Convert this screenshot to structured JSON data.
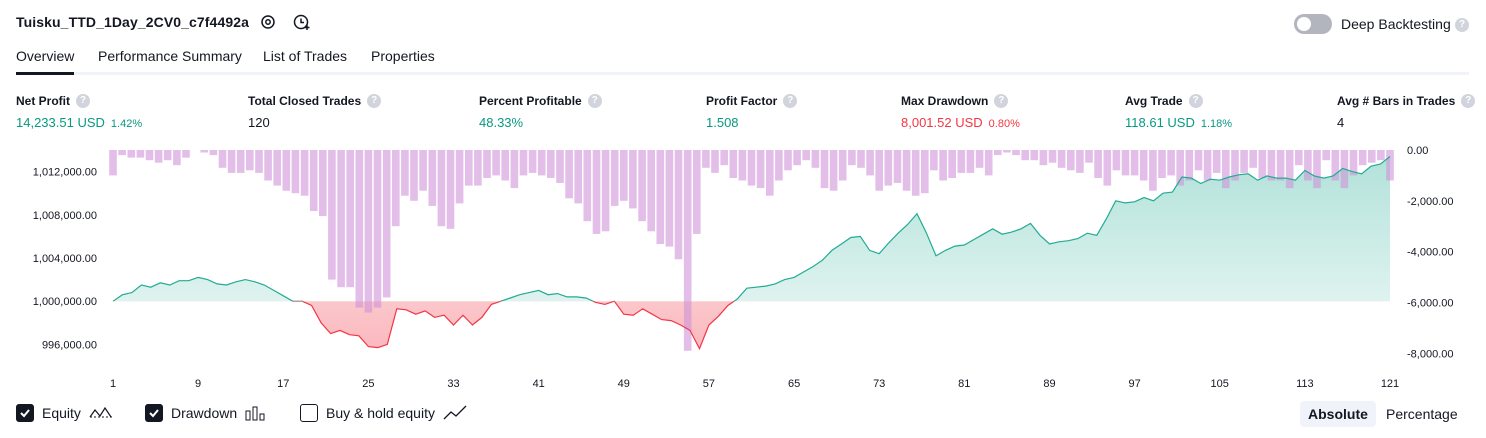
{
  "header": {
    "strategy_name": "Tuisku_TTD_1Day_2CV0_c7f4492a",
    "deep_backtesting_label": "Deep Backtesting",
    "deep_backtesting_enabled": false,
    "help_glyph": "?"
  },
  "tabs": [
    {
      "label": "Overview",
      "active": true
    },
    {
      "label": "Performance Summary",
      "active": false
    },
    {
      "label": "List of Trades",
      "active": false
    },
    {
      "label": "Properties",
      "active": false
    }
  ],
  "metrics": [
    {
      "label": "Net Profit",
      "value": "14,233.51 USD",
      "pct": "1.42%",
      "color": "green"
    },
    {
      "label": "Total Closed Trades",
      "value": "120",
      "pct": "",
      "color": "dark"
    },
    {
      "label": "Percent Profitable",
      "value": "48.33%",
      "pct": "",
      "color": "green"
    },
    {
      "label": "Profit Factor",
      "value": "1.508",
      "pct": "",
      "color": "green"
    },
    {
      "label": "Max Drawdown",
      "value": "8,001.52 USD",
      "pct": "0.80%",
      "color": "red"
    },
    {
      "label": "Avg Trade",
      "value": "118.61 USD",
      "pct": "1.18%",
      "color": "green"
    },
    {
      "label": "Avg # Bars in Trades",
      "value": "4",
      "pct": "",
      "color": "dark"
    }
  ],
  "chart_data": {
    "type": "area",
    "x_ticks": [
      "1",
      "9",
      "17",
      "25",
      "33",
      "41",
      "49",
      "57",
      "65",
      "73",
      "81",
      "89",
      "97",
      "105",
      "113",
      "121"
    ],
    "left_axis_ticks": [
      "1,012,000.00",
      "1,008,000.00",
      "1,004,000.00",
      "1,000,000.00",
      "996,000.00"
    ],
    "right_axis_ticks": [
      "0.00",
      "-2,000.00",
      "-4,000.00",
      "-6,000.00",
      "-8,000.00"
    ],
    "left_ylim": [
      994000,
      1014000
    ],
    "right_ylim": [
      -8500,
      0
    ],
    "baseline": 1000000,
    "colors": {
      "equity_line": "#22ab94",
      "equity_fill": "#22ab94",
      "drawdown_line": "#f23645",
      "drawdown_fill": "#f23645",
      "drawdown_bar": "#ce93d8"
    },
    "series": [
      {
        "name": "Equity",
        "values": [
          1000000,
          1000600,
          1000800,
          1001500,
          1001300,
          1001700,
          1001500,
          1001900,
          1001900,
          1002200,
          1002000,
          1001600,
          1001500,
          1001800,
          1002000,
          1001800,
          1001500,
          1001000,
          1000500,
          1000000,
          1000000,
          999600,
          998000,
          997000,
          997300,
          996900,
          996800,
          995800,
          995700,
          996000,
          999300,
          999200,
          998800,
          999100,
          998500,
          998700,
          997800,
          998700,
          997800,
          998500,
          999700,
          1000000,
          1000300,
          1000600,
          1000800,
          1001000,
          1000600,
          1000700,
          1000400,
          1000400,
          1000300,
          999900,
          999700,
          1000000,
          998800,
          998700,
          999300,
          998800,
          998300,
          998200,
          997800,
          997300,
          995600,
          997800,
          998600,
          999600,
          1000200,
          1001200,
          1001300,
          1001400,
          1001600,
          1002000,
          1002200,
          1002700,
          1003200,
          1003800,
          1004700,
          1005300,
          1005900,
          1006000,
          1004700,
          1004400,
          1005400,
          1006300,
          1007100,
          1008100,
          1006300,
          1004200,
          1004700,
          1005100,
          1005200,
          1005700,
          1006200,
          1006700,
          1006200,
          1006400,
          1006700,
          1007200,
          1006100,
          1005300,
          1005500,
          1005600,
          1005800,
          1006300,
          1006100,
          1007600,
          1009300,
          1009100,
          1009200,
          1009600,
          1009300,
          1010000,
          1010100,
          1011500,
          1011400,
          1010900,
          1011300,
          1011200,
          1011500,
          1011700,
          1011800,
          1011200,
          1011600,
          1011400,
          1011400,
          1011200,
          1012100,
          1011600,
          1011400,
          1011600,
          1012300,
          1012000,
          1011800,
          1012500,
          1012700,
          1013400
        ]
      },
      {
        "name": "Drawdown",
        "values": [
          -1000,
          -200,
          -300,
          -300,
          -400,
          -500,
          -400,
          -600,
          -300,
          0,
          -100,
          -200,
          -700,
          -900,
          -900,
          -800,
          -900,
          -1200,
          -1400,
          -1600,
          -1700,
          -1800,
          -2400,
          -2600,
          -5100,
          -5400,
          -5400,
          -6200,
          -6400,
          -6200,
          -5800,
          -3000,
          -1800,
          -2000,
          -1600,
          -2200,
          -3000,
          -3100,
          -2100,
          -1400,
          -1400,
          -1100,
          -1000,
          -1200,
          -1500,
          -1000,
          -900,
          -1000,
          -1100,
          -1300,
          -1900,
          -2100,
          -2800,
          -3300,
          -3200,
          -2200,
          -2000,
          -2300,
          -2800,
          -3200,
          -3700,
          -3800,
          -4300,
          -7900,
          -3300,
          -700,
          -900,
          -600,
          -1100,
          -1200,
          -1400,
          -1500,
          -1800,
          -1200,
          -800,
          -600,
          -400,
          -700,
          -1500,
          -1600,
          -1200,
          -600,
          -700,
          -1000,
          -1600,
          -1400,
          -1300,
          -1600,
          -1800,
          -1700,
          -800,
          -1200,
          -1100,
          -900,
          -900,
          -700,
          -1000,
          -200,
          -100,
          -200,
          -400,
          -400,
          -600,
          -500,
          -700,
          -800,
          -900,
          -500,
          -1100,
          -1400,
          -800,
          -1000,
          -1000,
          -1200,
          -1600,
          -1100,
          -1000,
          -1400,
          -1200,
          -800,
          -1200,
          -900,
          -1500,
          -1200,
          -900,
          -700,
          -1100,
          -1200,
          -1200,
          -1500,
          -600,
          -1200,
          -1500,
          -400,
          -1200,
          -1500,
          -1000,
          -600,
          -500,
          -400,
          -1200
        ]
      }
    ],
    "title": "",
    "xlabel": "",
    "ylabel": "",
    "grid": false
  },
  "legend": {
    "equity_label": "Equity",
    "drawdown_label": "Drawdown",
    "buyhold_label": "Buy & hold equity",
    "equity_checked": true,
    "drawdown_checked": true,
    "buyhold_checked": false
  },
  "view_toggle": {
    "absolute_label": "Absolute",
    "percentage_label": "Percentage",
    "selected": "Absolute"
  }
}
